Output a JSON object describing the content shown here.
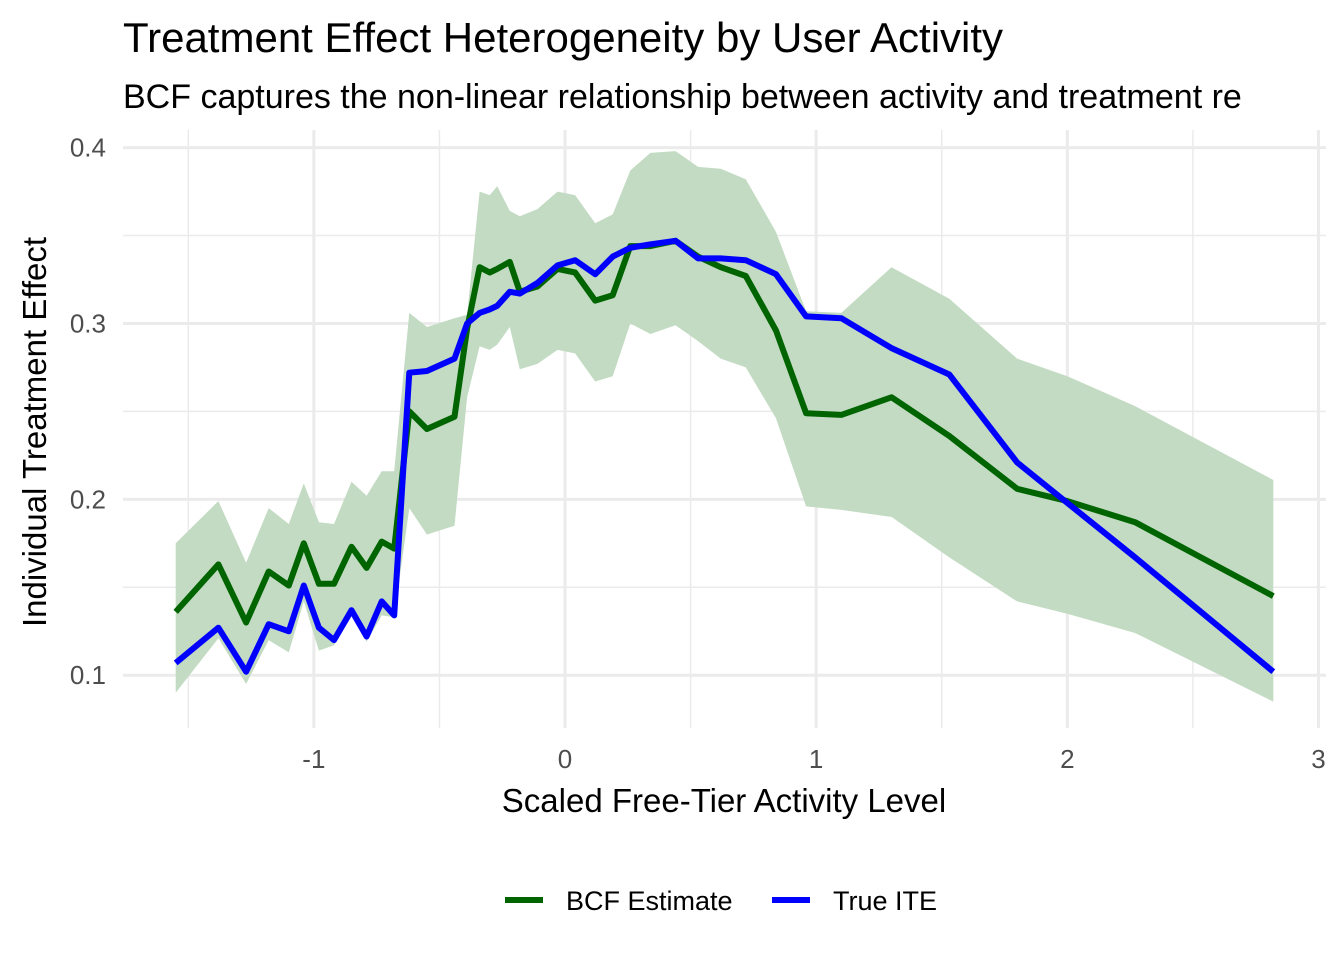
{
  "chart_data": {
    "type": "line",
    "title": "Treatment Effect Heterogeneity by User Activity",
    "subtitle": "BCF captures the non-linear relationship between activity and treatment re",
    "xlabel": "Scaled Free-Tier Activity Level",
    "ylabel": "Individual Treatment Effect",
    "xlim": [
      -1.76,
      3.03
    ],
    "ylim": [
      0.07,
      0.41
    ],
    "x_ticks": [
      -1,
      0,
      1,
      2,
      3
    ],
    "x_tick_labels": [
      "-1",
      "0",
      "1",
      "2",
      "3"
    ],
    "y_ticks": [
      0.1,
      0.2,
      0.3,
      0.4
    ],
    "y_tick_labels": [
      "0.1",
      "0.2",
      "0.3",
      "0.4"
    ],
    "grid": true,
    "legend_position": "bottom",
    "colors": {
      "band": "#c2dbc2",
      "grid": "#ebebeb"
    },
    "x": [
      -1.55,
      -1.38,
      -1.27,
      -1.18,
      -1.1,
      -1.04,
      -0.98,
      -0.92,
      -0.85,
      -0.79,
      -0.73,
      -0.68,
      -0.62,
      -0.55,
      -0.44,
      -0.39,
      -0.34,
      -0.3,
      -0.27,
      -0.22,
      -0.18,
      -0.11,
      -0.03,
      0.04,
      0.12,
      0.19,
      0.26,
      0.34,
      0.44,
      0.53,
      0.62,
      0.72,
      0.84,
      0.96,
      1.1,
      1.3,
      1.53,
      1.8,
      2.0,
      2.27,
      2.82
    ],
    "series": [
      {
        "name": "BCF Estimate",
        "color": "#006400",
        "values": [
          0.136,
          0.163,
          0.13,
          0.159,
          0.151,
          0.175,
          0.152,
          0.152,
          0.173,
          0.161,
          0.176,
          0.172,
          0.25,
          0.24,
          0.247,
          0.297,
          0.332,
          0.329,
          0.331,
          0.335,
          0.318,
          0.321,
          0.331,
          0.329,
          0.313,
          0.316,
          0.344,
          0.344,
          0.347,
          0.338,
          0.332,
          0.327,
          0.296,
          0.249,
          0.248,
          0.258,
          0.236,
          0.206,
          0.199,
          0.187,
          0.145
        ]
      },
      {
        "name": "True ITE",
        "color": "#0000ff",
        "values": [
          0.107,
          0.127,
          0.102,
          0.129,
          0.125,
          0.151,
          0.127,
          0.12,
          0.137,
          0.122,
          0.142,
          0.134,
          0.272,
          0.273,
          0.28,
          0.3,
          0.306,
          0.308,
          0.31,
          0.318,
          0.317,
          0.323,
          0.333,
          0.336,
          0.328,
          0.338,
          0.343,
          0.345,
          0.347,
          0.337,
          0.337,
          0.336,
          0.328,
          0.304,
          0.303,
          0.286,
          0.271,
          0.221,
          0.198,
          0.167,
          0.102
        ]
      }
    ],
    "interval": {
      "upper": [
        0.175,
        0.199,
        0.164,
        0.195,
        0.186,
        0.209,
        0.187,
        0.186,
        0.21,
        0.202,
        0.216,
        0.216,
        0.306,
        0.298,
        0.303,
        0.305,
        0.375,
        0.373,
        0.378,
        0.364,
        0.361,
        0.365,
        0.375,
        0.373,
        0.357,
        0.362,
        0.387,
        0.397,
        0.398,
        0.389,
        0.388,
        0.382,
        0.352,
        0.307,
        0.306,
        0.332,
        0.314,
        0.28,
        0.27,
        0.253,
        0.211
      ],
      "lower": [
        0.09,
        0.121,
        0.095,
        0.12,
        0.113,
        0.142,
        0.114,
        0.117,
        0.134,
        0.119,
        0.134,
        0.133,
        0.195,
        0.18,
        0.185,
        0.258,
        0.287,
        0.285,
        0.288,
        0.298,
        0.274,
        0.277,
        0.285,
        0.283,
        0.267,
        0.27,
        0.3,
        0.294,
        0.299,
        0.29,
        0.28,
        0.275,
        0.246,
        0.196,
        0.194,
        0.19,
        0.167,
        0.142,
        0.135,
        0.124,
        0.085
      ]
    }
  }
}
